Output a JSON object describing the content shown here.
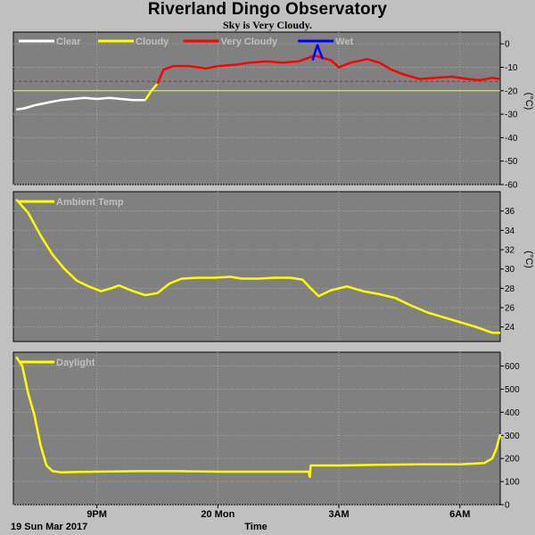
{
  "title": "Riverland Dingo Observatory",
  "subtitle": "Sky is Very Cloudy.",
  "x_axis": {
    "tick_labels": [
      {
        "label": "9PM",
        "t": 9.0
      },
      {
        "label": "20 Mon",
        "t": 12.0
      },
      {
        "label": "3AM",
        "t": 15.0
      },
      {
        "label": "6AM",
        "t": 18.0
      }
    ],
    "date_label": "19 Sun Mar 2017",
    "xlabel": "Time",
    "t_min": 6.93,
    "t_max": 19.0
  },
  "colors": {
    "panel_bg": "#808080",
    "page_bg": "#c0c0c0",
    "grid": "#a8a8a8",
    "clear": "#ffffff",
    "cloudy": "#ffff00",
    "very_cloudy": "#ff0000",
    "wet": "#0000ff"
  },
  "chart_data": [
    {
      "type": "line",
      "name": "sky",
      "ylabel": "(°C)",
      "ylim": [
        -60,
        5
      ],
      "yticks": [
        0,
        -10,
        -20,
        -30,
        -40,
        -50,
        -60
      ],
      "threshold_lines": [
        {
          "value": -16,
          "color": "#ff0000",
          "style": "dashed"
        },
        {
          "value": -20,
          "color": "#ffff00",
          "style": "solid"
        }
      ],
      "legend": [
        {
          "label": "Clear",
          "color": "#ffffff"
        },
        {
          "label": "Cloudy",
          "color": "#ffff00"
        },
        {
          "label": "Very Cloudy",
          "color": "#ff0000"
        },
        {
          "label": "Wet",
          "color": "#0000ff"
        }
      ],
      "series": [
        {
          "name": "Clear",
          "color": "#ffffff",
          "points": [
            [
              7.0,
              -28
            ],
            [
              7.2,
              -27.5
            ],
            [
              7.5,
              -26
            ],
            [
              7.8,
              -25
            ],
            [
              8.1,
              -24
            ],
            [
              8.4,
              -23.5
            ],
            [
              8.7,
              -23
            ],
            [
              9.0,
              -23.5
            ],
            [
              9.3,
              -23
            ],
            [
              9.6,
              -23.5
            ],
            [
              9.9,
              -24
            ],
            [
              10.2,
              -24
            ]
          ]
        },
        {
          "name": "Cloudy",
          "color": "#ffff00",
          "points": [
            [
              10.2,
              -24
            ],
            [
              10.35,
              -20
            ],
            [
              10.5,
              -17
            ]
          ]
        },
        {
          "name": "Very Cloudy",
          "color": "#ff0000",
          "points": [
            [
              10.5,
              -17
            ],
            [
              10.65,
              -11
            ],
            [
              10.9,
              -9.5
            ],
            [
              11.3,
              -9.5
            ],
            [
              11.7,
              -10.5
            ],
            [
              12.0,
              -9.5
            ],
            [
              12.4,
              -9
            ],
            [
              12.8,
              -8
            ],
            [
              13.2,
              -7.5
            ],
            [
              13.6,
              -8
            ],
            [
              14.0,
              -7.5
            ],
            [
              14.4,
              -5
            ],
            [
              14.8,
              -7
            ],
            [
              15.0,
              -10
            ],
            [
              15.3,
              -8
            ],
            [
              15.7,
              -6.5
            ],
            [
              16.0,
              -8
            ],
            [
              16.3,
              -11
            ],
            [
              16.6,
              -13
            ],
            [
              17.0,
              -15
            ],
            [
              17.4,
              -14.5
            ],
            [
              17.8,
              -14
            ],
            [
              18.2,
              -15
            ],
            [
              18.5,
              -15.5
            ],
            [
              18.8,
              -14.5
            ],
            [
              19.0,
              -15
            ]
          ]
        },
        {
          "name": "Wet",
          "color": "#0000ff",
          "points": [
            [
              14.35,
              -7
            ],
            [
              14.42,
              -3
            ],
            [
              14.47,
              -0.5
            ],
            [
              14.52,
              -3
            ],
            [
              14.6,
              -6.5
            ]
          ]
        }
      ]
    },
    {
      "type": "line",
      "name": "ambient",
      "ylabel": "(°C)",
      "ylim": [
        22.5,
        38
      ],
      "yticks": [
        24,
        26,
        28,
        30,
        32,
        34,
        36
      ],
      "legend": [
        {
          "label": "Ambient Temp",
          "color": "#ffff00"
        }
      ],
      "series": [
        {
          "name": "Ambient Temp",
          "color": "#ffff00",
          "points": [
            [
              7.0,
              37.2
            ],
            [
              7.3,
              35.8
            ],
            [
              7.6,
              33.5
            ],
            [
              7.9,
              31.5
            ],
            [
              8.2,
              30
            ],
            [
              8.5,
              28.8
            ],
            [
              8.8,
              28.2
            ],
            [
              9.1,
              27.7
            ],
            [
              9.35,
              28.0
            ],
            [
              9.55,
              28.3
            ],
            [
              9.9,
              27.7
            ],
            [
              10.2,
              27.3
            ],
            [
              10.5,
              27.5
            ],
            [
              10.8,
              28.5
            ],
            [
              11.1,
              29.0
            ],
            [
              11.5,
              29.1
            ],
            [
              11.9,
              29.1
            ],
            [
              12.3,
              29.2
            ],
            [
              12.6,
              29.0
            ],
            [
              13.0,
              29.0
            ],
            [
              13.4,
              29.1
            ],
            [
              13.8,
              29.1
            ],
            [
              14.1,
              28.9
            ],
            [
              14.3,
              28.0
            ],
            [
              14.5,
              27.2
            ],
            [
              14.8,
              27.8
            ],
            [
              15.2,
              28.2
            ],
            [
              15.6,
              27.7
            ],
            [
              16.0,
              27.4
            ],
            [
              16.4,
              27.0
            ],
            [
              16.8,
              26.2
            ],
            [
              17.2,
              25.5
            ],
            [
              17.6,
              25.0
            ],
            [
              18.0,
              24.5
            ],
            [
              18.4,
              24.0
            ],
            [
              18.8,
              23.4
            ],
            [
              19.0,
              23.4
            ]
          ]
        }
      ]
    },
    {
      "type": "line",
      "name": "daylight",
      "ylabel": "",
      "ylim": [
        0,
        660
      ],
      "yticks": [
        0,
        100,
        200,
        300,
        400,
        500,
        600
      ],
      "legend": [
        {
          "label": "Daylight",
          "color": "#ffff00"
        }
      ],
      "series": [
        {
          "name": "Daylight",
          "color": "#ffff00",
          "points": [
            [
              7.0,
              640
            ],
            [
              7.15,
              600
            ],
            [
              7.3,
              480
            ],
            [
              7.45,
              390
            ],
            [
              7.6,
              260
            ],
            [
              7.75,
              170
            ],
            [
              7.9,
              145
            ],
            [
              8.1,
              140
            ],
            [
              8.6,
              142
            ],
            [
              9.0,
              143
            ],
            [
              10.0,
              145
            ],
            [
              11.0,
              145
            ],
            [
              12.0,
              143
            ],
            [
              13.0,
              143
            ],
            [
              13.5,
              143
            ],
            [
              14.25,
              143
            ],
            [
              14.28,
              120
            ],
            [
              14.3,
              170
            ],
            [
              15.0,
              170
            ],
            [
              16.0,
              173
            ],
            [
              17.0,
              175
            ],
            [
              18.0,
              175
            ],
            [
              18.6,
              180
            ],
            [
              18.8,
              200
            ],
            [
              18.9,
              240
            ],
            [
              19.0,
              305
            ]
          ]
        }
      ]
    }
  ]
}
